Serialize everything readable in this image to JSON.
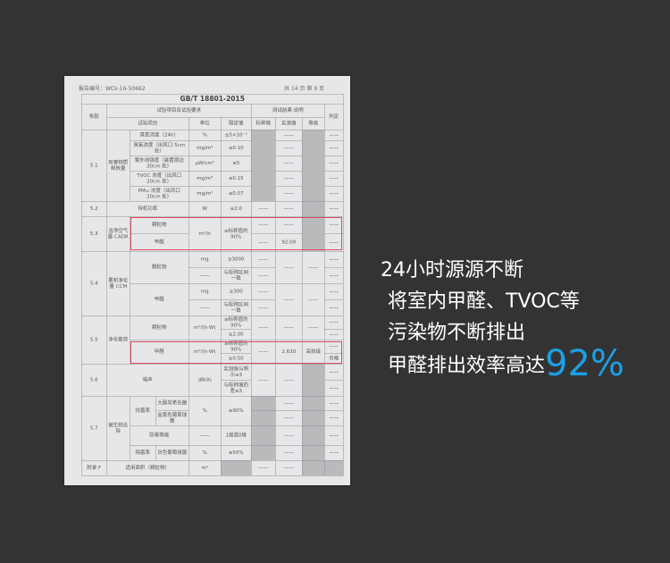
{
  "doc": {
    "report_no": "报告编号：WCk-16-50662",
    "pages": "共 14 页  第 9 页",
    "standard": "GB/T 18801-2015",
    "h": {
      "clause": "条款",
      "req": "试验项目及试验要求",
      "result": "测试结果·说明",
      "verdict": "判定",
      "item": "试验项目",
      "unit": "单位",
      "limit": "限定值",
      "nominal": "标称值",
      "measured": "实测值",
      "grade": "等级"
    },
    "s51": {
      "clause": "5.1",
      "cat": "有害物质释放量",
      "rows": [
        [
          "臭氧浓度（24h）",
          "%",
          "≤5×10⁻⁶",
          "——",
          "——"
        ],
        [
          "臭氧浓度（出风口 5cm 处）",
          "mg/m³",
          "≤0.10",
          "——",
          "——"
        ],
        [
          "紫外线强度（装置周边 30cm 处）",
          "μW/cm²",
          "≤5",
          "——",
          "——"
        ],
        [
          "TVOC 浓度（出风口 20cm 处）",
          "mg/m³",
          "≤0.15",
          "——",
          "——"
        ],
        [
          "PM₁₀ 浓度（出风口 20cm 处）",
          "mg/m³",
          "≤0.07",
          "——",
          "——"
        ]
      ]
    },
    "s52": {
      "clause": "5.2",
      "item": "待机功率",
      "unit": "W",
      "limit": "≤2.0",
      "nominal": "——",
      "measured": "——",
      "verdict": "——"
    },
    "s53": {
      "clause": "5.3",
      "cat": "洁净空气量 CADR",
      "item1": "颗粒物",
      "item2": "甲醛",
      "unit": "m³/h",
      "limit": "≥标称值的 90%",
      "n1": "——",
      "m1": "——",
      "v1": "——",
      "n2": "——",
      "m2": "92.09",
      "v2": "——"
    },
    "s54": {
      "clause": "5.4",
      "cat": "累积净化量 CCM",
      "item1": "颗粒物",
      "item2": "甲醛",
      "u1": "mg",
      "l1": "≥3000",
      "u2": "——",
      "l2": "与标称区间一致",
      "u3": "mg",
      "l3": "≥300",
      "u4": "——",
      "l4": "与标称区间一致",
      "dash": "——"
    },
    "s55": {
      "clause": "5.5",
      "cat": "净化能效",
      "item1": "颗粒物",
      "item2": "甲醛",
      "unit": "m³/(h·W)",
      "l1": "≥标称值的 90%",
      "l2": "≥2.00",
      "l3": "≥标称值的 90%",
      "l4": "≥0.50",
      "dash": "——",
      "m2": "2.630",
      "g2": "高效级",
      "v4": "合格"
    },
    "s56": {
      "clause": "5.6",
      "item": "噪声",
      "unit": "dB(A)",
      "l1": "实测值与明示≤3",
      "l2": "与标称值的差≤3",
      "dash": "——"
    },
    "s57": {
      "clause": "5.7",
      "cat": "微生物去除",
      "antibac": "抗菌率",
      "ecoli": "大肠埃希氏菌",
      "saureus": "金黄色葡萄球菌",
      "pct": "%",
      "l1": "≥90%",
      "mould": "防霉等级",
      "mould_unit": "——",
      "l2": "1级或0级",
      "sterilize": "除菌率",
      "salbus": "白色葡萄球菌",
      "l3": "≥50%",
      "dash": "——"
    },
    "sF": {
      "clause": "附录 F",
      "item": "适用面积（颗粒物）",
      "unit": "m²",
      "dash": "——"
    }
  },
  "side": {
    "line1": "24小时源源不断",
    "line2": "将室内甲醛、TVOC等",
    "line3": "污染物不断排出",
    "line4": "甲醛排出效率高达",
    "highlight": "92%",
    "highlight_color": "#1d9fe6"
  }
}
